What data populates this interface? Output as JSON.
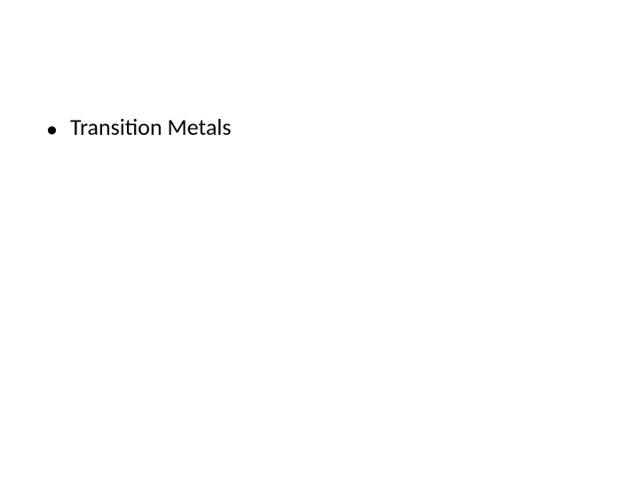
{
  "slide": {
    "background_color": "#ffffff",
    "text_color": "#000000",
    "font_family": "Calibri, Arial, sans-serif",
    "font_size_pt": 20,
    "bullets": [
      {
        "marker": "•",
        "text": "Transition Metals"
      }
    ]
  }
}
